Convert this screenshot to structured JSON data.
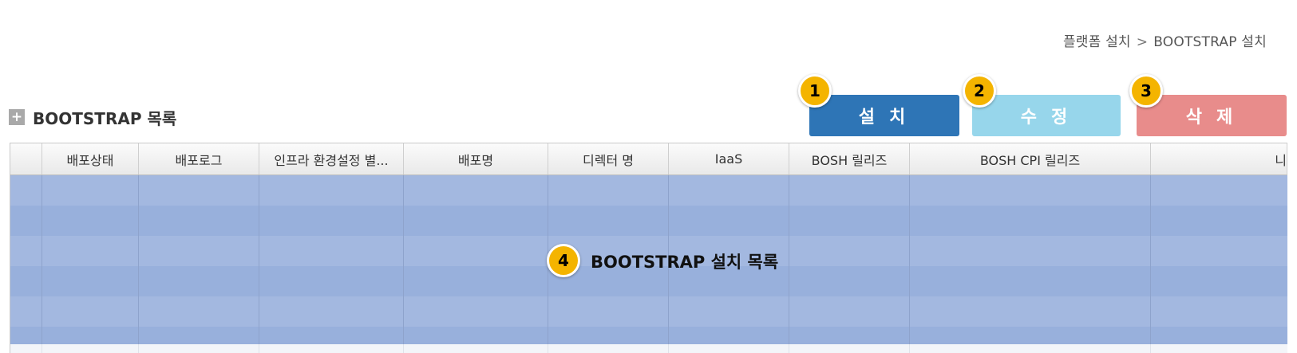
{
  "breadcrumb": {
    "parent": "플랫폼 설치",
    "separator": ">",
    "current": "BOOTSTRAP 설치"
  },
  "section": {
    "icon": "plus-square-icon",
    "title": "BOOTSTRAP 목록"
  },
  "toolbar": {
    "install_label": "설치",
    "edit_label": "수정",
    "delete_label": "삭제"
  },
  "badges": [
    "1",
    "2",
    "3",
    "4"
  ],
  "grid": {
    "columns": [
      "",
      "배포상태",
      "배포로그",
      "인프라 환경설정 별...",
      "배포명",
      "디렉터 명",
      "IaaS",
      "BOSH 릴리즈",
      "BOSH CPI 릴리즈",
      "니"
    ],
    "rows": []
  },
  "overlay_label": "BOOTSTRAP 설치 목록",
  "colors": {
    "install": "#2e75b6",
    "edit": "#97d6eb",
    "delete": "#e88c8b",
    "badge": "#f4b400",
    "selection": "#a3b8e0"
  }
}
